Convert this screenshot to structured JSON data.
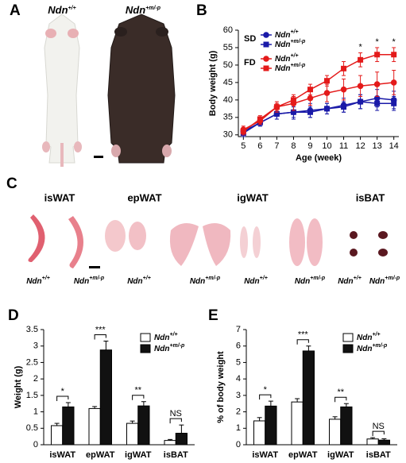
{
  "panels": [
    "A",
    "B",
    "C",
    "D",
    "E"
  ],
  "photo_a_labels": [
    "Ndn+/+",
    "Ndn+m/-p"
  ],
  "photo_c_tissues": [
    "isWAT",
    "epWAT",
    "igWAT",
    "isBAT"
  ],
  "photo_c_labels": [
    "Ndn+/+",
    "Ndn+m/-p",
    "Ndn+/+",
    "Ndn+m/-p",
    "Ndn+/+",
    "Ndn+m/-p",
    "Ndn+/+",
    "Ndn+m/-p"
  ],
  "chart_data": [
    {
      "type": "line",
      "xlabel": "Age (week)",
      "ylabel": "Body weight (g)",
      "x": [
        5,
        6,
        7,
        8,
        9,
        10,
        11,
        12,
        13,
        14
      ],
      "xlim": [
        4.7,
        14.3
      ],
      "xticks": [
        5,
        6,
        7,
        8,
        9,
        10,
        11,
        12,
        13,
        14
      ],
      "ylim": [
        29.5,
        60
      ],
      "yticks": [
        30,
        35,
        40,
        45,
        50,
        55,
        60
      ],
      "series": [
        {
          "name": "Ndn+/+",
          "group": "SD",
          "color": "#1a1aa8",
          "marker": "circle",
          "values": [
            31,
            33.5,
            36,
            36.5,
            37,
            37.5,
            38.5,
            39.5,
            40.5,
            40
          ],
          "errors": [
            1,
            1,
            1.5,
            2,
            2,
            1.5,
            2,
            2,
            2.5,
            2.5
          ]
        },
        {
          "name": "Ndn+m/-p",
          "group": "SD",
          "color": "#1a1aa8",
          "marker": "square",
          "values": [
            30.5,
            33.5,
            36,
            36.5,
            36.5,
            37.5,
            38,
            39.5,
            39,
            39
          ],
          "errors": [
            1,
            1,
            1.5,
            1.5,
            1.5,
            1.5,
            1.5,
            2,
            2,
            2
          ]
        },
        {
          "name": "Ndn+/+",
          "group": "FD",
          "color": "#e41a1a",
          "marker": "circle",
          "values": [
            31.5,
            34,
            38,
            39,
            40.5,
            42,
            43,
            44,
            44.5,
            45
          ],
          "errors": [
            1,
            1,
            1.5,
            2,
            2,
            2.5,
            3,
            3,
            3.5,
            3.5
          ]
        },
        {
          "name": "Ndn+m/-p",
          "group": "FD",
          "color": "#e41a1a",
          "marker": "square",
          "values": [
            31,
            34.5,
            38,
            40,
            43,
            45.5,
            49,
            51.5,
            53,
            53
          ],
          "errors": [
            1,
            1,
            1,
            1.5,
            1.5,
            1.5,
            2,
            2,
            2,
            2
          ]
        }
      ],
      "annotations": [
        {
          "x": 12,
          "label": "*"
        },
        {
          "x": 13,
          "label": "*"
        },
        {
          "x": 14,
          "label": "*"
        }
      ]
    },
    {
      "type": "bar",
      "ylabel": "Weight (g)",
      "categories": [
        "isWAT",
        "epWAT",
        "igWAT",
        "isBAT"
      ],
      "ylim": [
        0,
        3.5
      ],
      "yticks": [
        0,
        0.5,
        1,
        1.5,
        2,
        2.5,
        3,
        3.5
      ],
      "series": [
        {
          "name": "Ndn+/+",
          "color": "#ffffff",
          "values": [
            0.58,
            1.1,
            0.65,
            0.13
          ],
          "errors": [
            0.07,
            0.06,
            0.07,
            0.03
          ]
        },
        {
          "name": "Ndn+m/-p",
          "color": "#111111",
          "values": [
            1.15,
            2.88,
            1.18,
            0.35
          ],
          "errors": [
            0.13,
            0.27,
            0.13,
            0.25
          ]
        }
      ],
      "annotations": [
        "*",
        "***",
        "**",
        "NS"
      ]
    },
    {
      "type": "bar",
      "ylabel": "% of body weight",
      "categories": [
        "isWAT",
        "epWAT",
        "igWAT",
        "isBAT"
      ],
      "ylim": [
        0,
        7
      ],
      "yticks": [
        0,
        1,
        2,
        3,
        4,
        5,
        6,
        7
      ],
      "series": [
        {
          "name": "Ndn+/+",
          "color": "#ffffff",
          "values": [
            1.45,
            2.6,
            1.55,
            0.35
          ],
          "errors": [
            0.2,
            0.2,
            0.15,
            0.08
          ]
        },
        {
          "name": "Ndn+m/-p",
          "color": "#111111",
          "values": [
            2.35,
            5.7,
            2.3,
            0.28
          ],
          "errors": [
            0.3,
            0.3,
            0.2,
            0.08
          ]
        }
      ],
      "annotations": [
        "*",
        "***",
        "**",
        "NS"
      ]
    }
  ]
}
